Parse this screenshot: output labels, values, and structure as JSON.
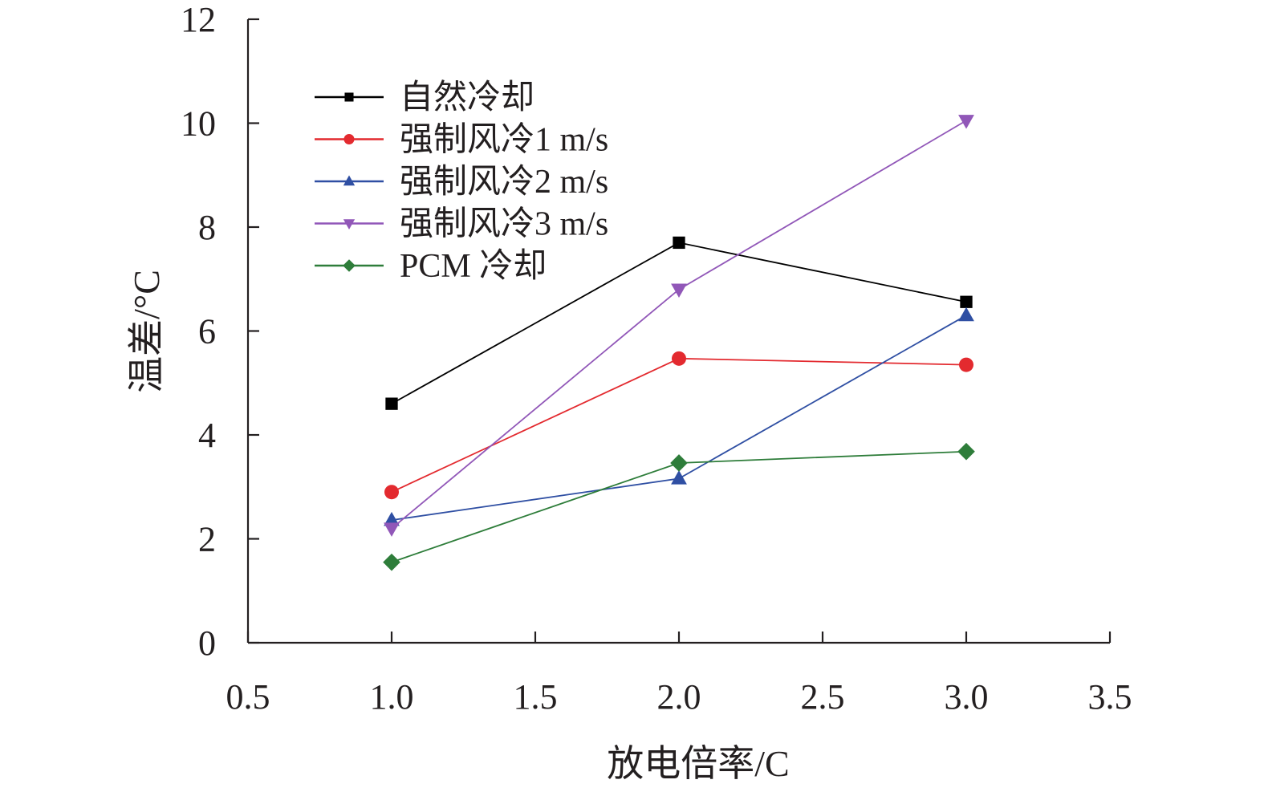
{
  "chart_data": {
    "type": "line",
    "title": "",
    "xlabel": "放电倍率/C",
    "ylabel": "温差/°C",
    "xlim": [
      0.5,
      3.5
    ],
    "ylim": [
      0,
      12
    ],
    "xticks": [
      "0.5",
      "1.0",
      "1.5",
      "2.0",
      "2.5",
      "3.0",
      "3.5"
    ],
    "xtick_values": [
      0.5,
      1.0,
      1.5,
      2.0,
      2.5,
      3.0,
      3.5
    ],
    "yticks": [
      "0",
      "2",
      "4",
      "6",
      "8",
      "10",
      "12"
    ],
    "ytick_values": [
      0,
      2,
      4,
      6,
      8,
      10,
      12
    ],
    "grid": false,
    "legend_position": "top-left",
    "x": [
      1.0,
      2.0,
      3.0
    ],
    "series": [
      {
        "name": "自然冷却",
        "values": [
          4.6,
          7.7,
          6.56
        ],
        "color": "#000000",
        "marker": "square"
      },
      {
        "name": "强制风冷1 m/s",
        "values": [
          2.9,
          5.47,
          5.35
        ],
        "color": "#e32a2f",
        "marker": "circle"
      },
      {
        "name": "强制风冷2 m/s",
        "values": [
          2.36,
          3.16,
          6.3
        ],
        "color": "#2f4fa3",
        "marker": "triangle-up"
      },
      {
        "name": "强制风冷3 m/s",
        "values": [
          2.2,
          6.8,
          10.05
        ],
        "color": "#9157b8",
        "marker": "triangle-down"
      },
      {
        "name": "PCM 冷却",
        "values": [
          1.55,
          3.46,
          3.68
        ],
        "color": "#2e7d3a",
        "marker": "diamond"
      }
    ]
  }
}
